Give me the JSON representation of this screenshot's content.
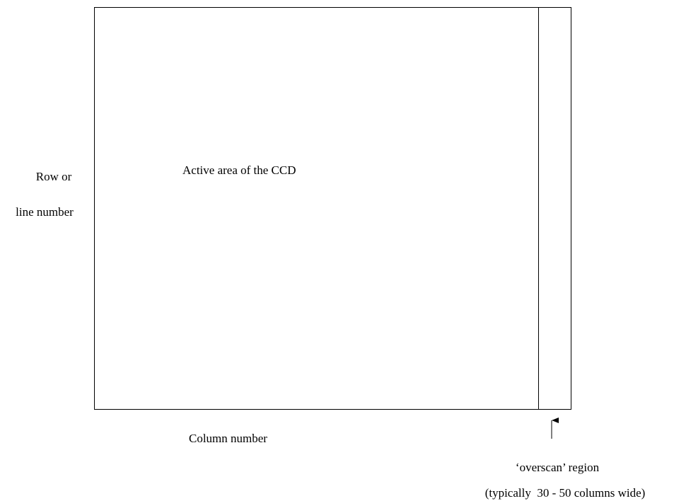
{
  "labels": {
    "row_label": [
      "Row or",
      "line number"
    ],
    "active_area": "Active area of the CCD",
    "column_label": "Column number",
    "overscan": "‘overscan’ region",
    "overscan_note": "(typically  30 - 50 columns wide)"
  }
}
